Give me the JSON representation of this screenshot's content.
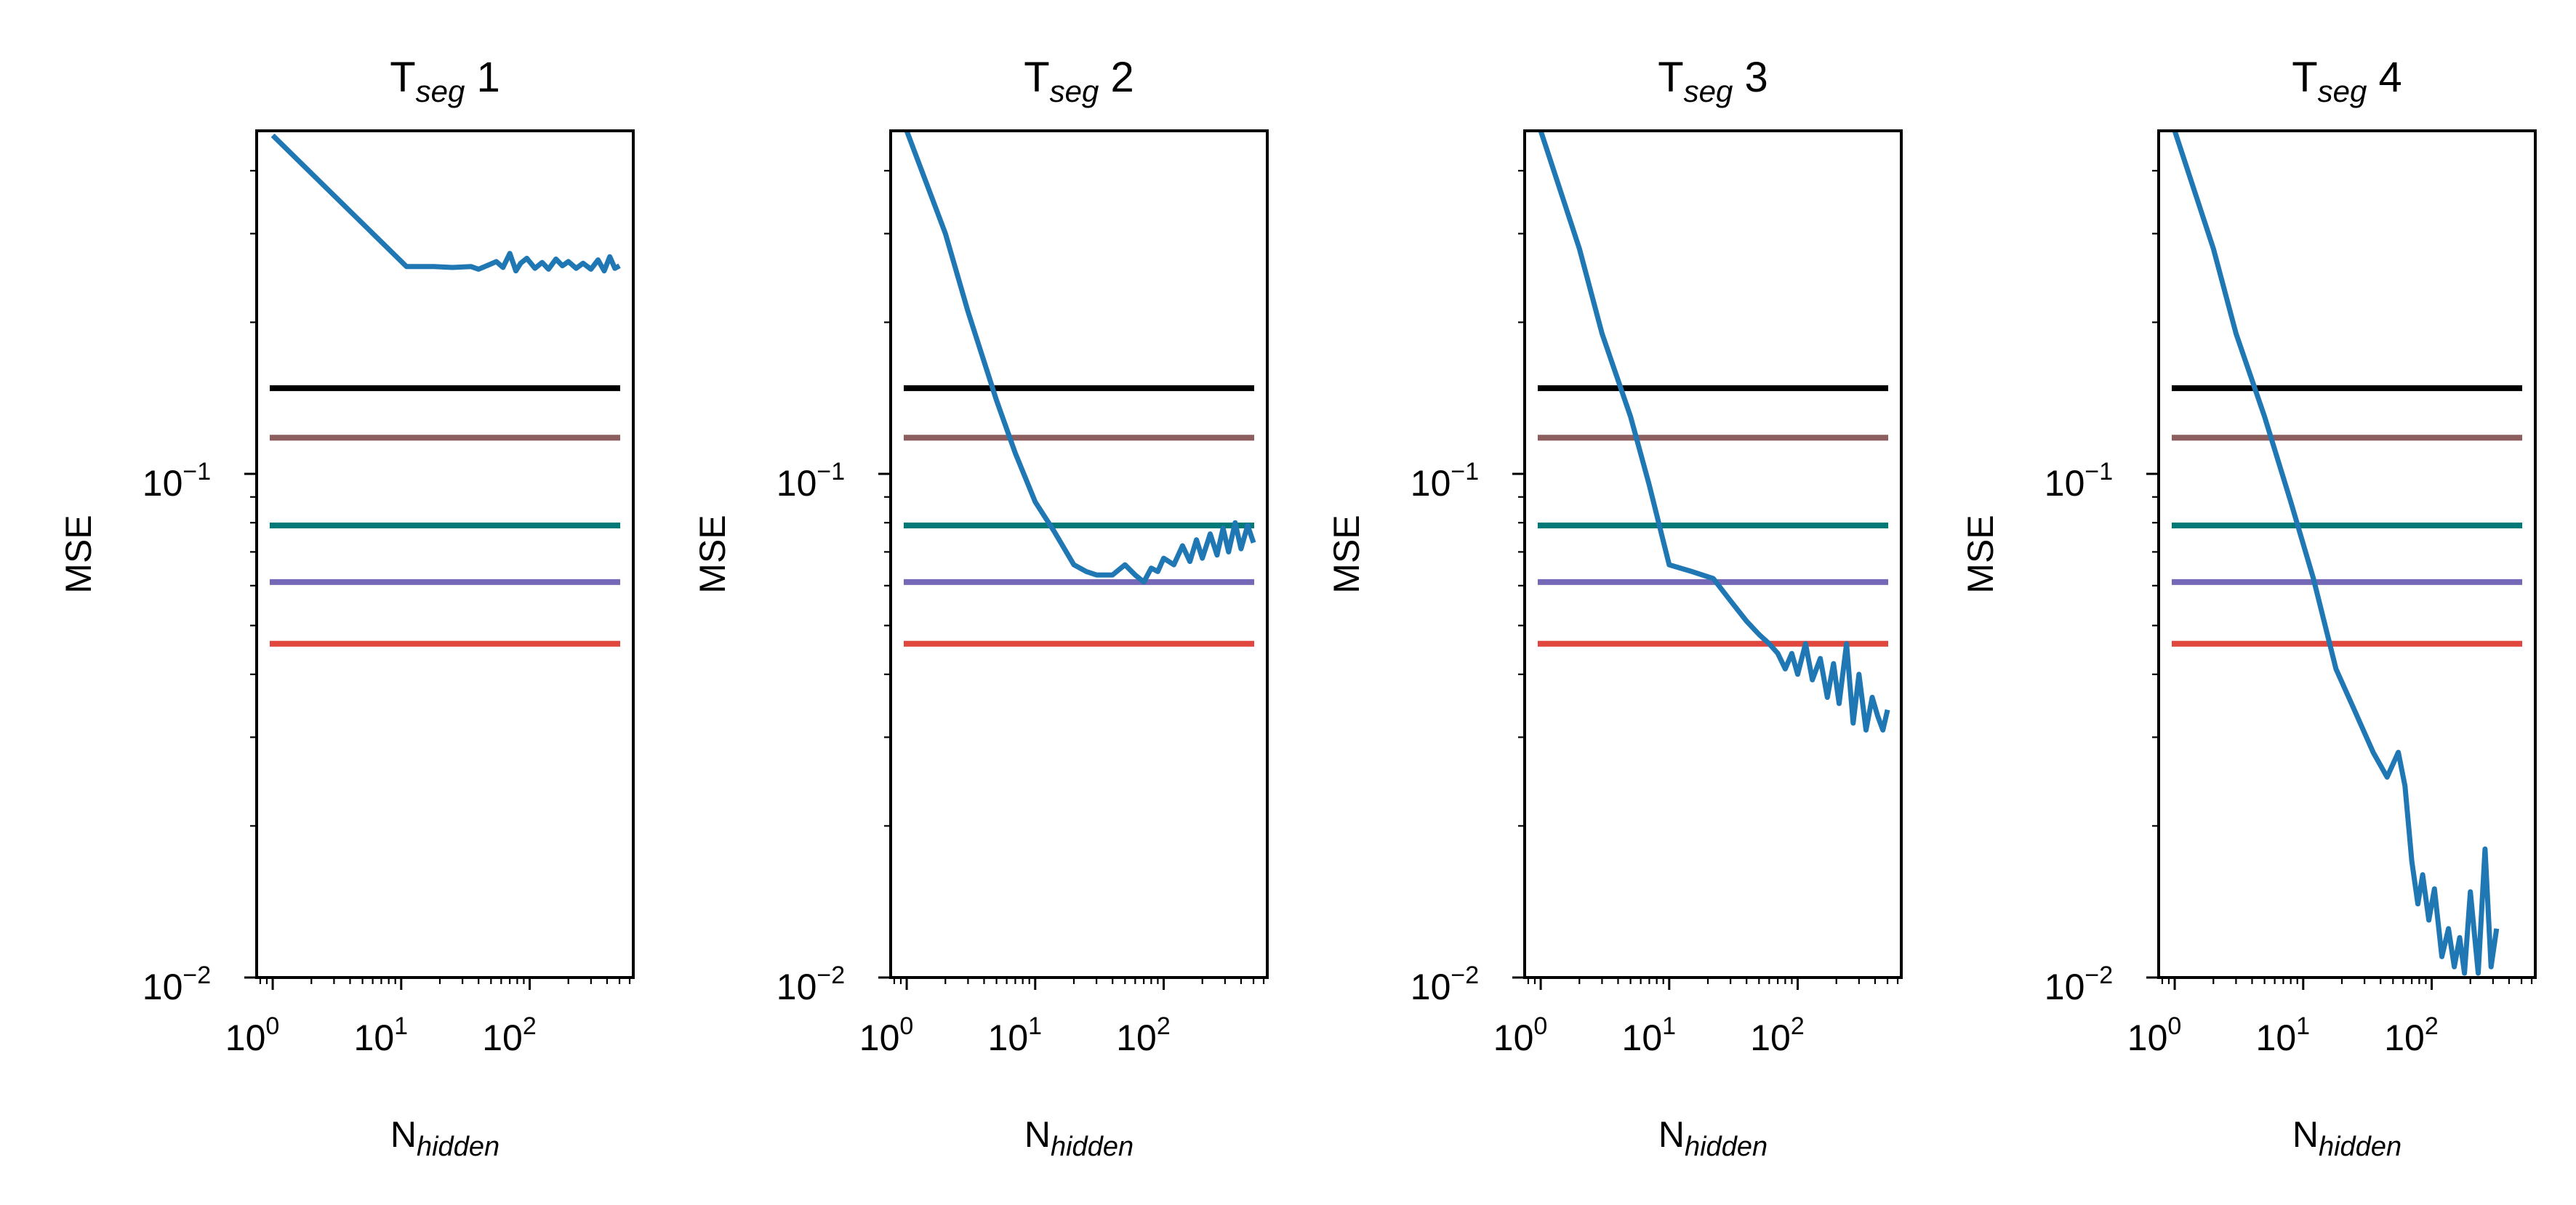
{
  "chart_data": [
    {
      "type": "line",
      "title": {
        "main": "T",
        "sub": "seg",
        "suffix": " 1"
      },
      "xlabel": {
        "main": "N",
        "sub": "hidden"
      },
      "ylabel": "MSE",
      "xscale": "log",
      "yscale": "log",
      "xlim": [
        0.75,
        640
      ],
      "ylim": [
        0.01,
        0.48
      ],
      "xticks": [
        {
          "base": "10",
          "exp": "0",
          "value": 1
        },
        {
          "base": "10",
          "exp": "1",
          "value": 10
        },
        {
          "base": "10",
          "exp": "2",
          "value": 100
        }
      ],
      "yticks": [
        {
          "base": "10",
          "exp": "−2",
          "value": 0.01
        },
        {
          "base": "10",
          "exp": "−1",
          "value": 0.1
        }
      ],
      "grid": false,
      "reference_lines": [
        {
          "y": 0.148,
          "color": "#000000"
        },
        {
          "y": 0.118,
          "color": "#8c5e5e"
        },
        {
          "y": 0.079,
          "color": "#007a78"
        },
        {
          "y": 0.061,
          "color": "#7468b7"
        },
        {
          "y": 0.046,
          "color": "#e0483f"
        }
      ],
      "series": [
        {
          "color": "#1f77b4",
          "x": [
            1,
            11,
            14,
            18,
            25,
            35,
            40,
            48,
            55,
            62,
            70,
            78,
            85,
            95,
            110,
            125,
            140,
            160,
            180,
            200,
            230,
            260,
            300,
            340,
            380,
            420,
            460,
            500
          ],
          "y": [
            0.47,
            0.258,
            0.258,
            0.258,
            0.257,
            0.258,
            0.255,
            0.26,
            0.264,
            0.257,
            0.274,
            0.253,
            0.262,
            0.268,
            0.256,
            0.263,
            0.255,
            0.267,
            0.259,
            0.264,
            0.256,
            0.262,
            0.255,
            0.266,
            0.253,
            0.27,
            0.256,
            0.259
          ]
        }
      ]
    },
    {
      "type": "line",
      "title": {
        "main": "T",
        "sub": "seg",
        "suffix": " 2"
      },
      "xlabel": {
        "main": "N",
        "sub": "hidden"
      },
      "ylabel": "MSE",
      "xscale": "log",
      "yscale": "log",
      "xlim": [
        0.75,
        640
      ],
      "ylim": [
        0.01,
        0.48
      ],
      "xticks": [
        {
          "base": "10",
          "exp": "0",
          "value": 1
        },
        {
          "base": "10",
          "exp": "1",
          "value": 10
        },
        {
          "base": "10",
          "exp": "2",
          "value": 100
        }
      ],
      "yticks": [
        {
          "base": "10",
          "exp": "−2",
          "value": 0.01
        },
        {
          "base": "10",
          "exp": "−1",
          "value": 0.1
        }
      ],
      "grid": false,
      "reference_lines": [
        {
          "y": 0.148,
          "color": "#000000"
        },
        {
          "y": 0.118,
          "color": "#8c5e5e"
        },
        {
          "y": 0.079,
          "color": "#007a78"
        },
        {
          "y": 0.061,
          "color": "#7468b7"
        },
        {
          "y": 0.046,
          "color": "#e0483f"
        }
      ],
      "series": [
        {
          "color": "#1f77b4",
          "x": [
            1,
            2,
            3,
            5,
            7,
            10,
            14,
            20,
            25,
            30,
            40,
            50,
            60,
            70,
            80,
            90,
            100,
            120,
            140,
            160,
            180,
            200,
            230,
            260,
            290,
            320,
            360,
            400,
            450,
            500
          ],
          "y": [
            0.48,
            0.3,
            0.21,
            0.14,
            0.11,
            0.088,
            0.077,
            0.066,
            0.064,
            0.063,
            0.063,
            0.066,
            0.063,
            0.061,
            0.065,
            0.064,
            0.068,
            0.066,
            0.072,
            0.067,
            0.074,
            0.068,
            0.076,
            0.069,
            0.078,
            0.07,
            0.08,
            0.071,
            0.079,
            0.073
          ]
        }
      ]
    },
    {
      "type": "line",
      "title": {
        "main": "T",
        "sub": "seg",
        "suffix": " 3"
      },
      "xlabel": {
        "main": "N",
        "sub": "hidden"
      },
      "ylabel": "MSE",
      "xscale": "log",
      "yscale": "log",
      "xlim": [
        0.75,
        640
      ],
      "ylim": [
        0.01,
        0.48
      ],
      "xticks": [
        {
          "base": "10",
          "exp": "0",
          "value": 1
        },
        {
          "base": "10",
          "exp": "1",
          "value": 10
        },
        {
          "base": "10",
          "exp": "2",
          "value": 100
        }
      ],
      "yticks": [
        {
          "base": "10",
          "exp": "−2",
          "value": 0.01
        },
        {
          "base": "10",
          "exp": "−1",
          "value": 0.1
        }
      ],
      "grid": false,
      "reference_lines": [
        {
          "y": 0.148,
          "color": "#000000"
        },
        {
          "y": 0.118,
          "color": "#8c5e5e"
        },
        {
          "y": 0.079,
          "color": "#007a78"
        },
        {
          "y": 0.061,
          "color": "#7468b7"
        },
        {
          "y": 0.046,
          "color": "#e0483f"
        }
      ],
      "series": [
        {
          "color": "#1f77b4",
          "x": [
            1,
            2,
            3,
            5,
            7,
            10,
            15,
            22,
            30,
            40,
            50,
            60,
            70,
            80,
            90,
            100,
            115,
            130,
            150,
            170,
            190,
            210,
            240,
            270,
            300,
            340,
            380,
            420,
            460,
            500
          ],
          "y": [
            0.48,
            0.28,
            0.19,
            0.13,
            0.095,
            0.066,
            0.064,
            0.062,
            0.056,
            0.051,
            0.048,
            0.046,
            0.044,
            0.041,
            0.044,
            0.04,
            0.046,
            0.039,
            0.043,
            0.036,
            0.042,
            0.035,
            0.046,
            0.032,
            0.04,
            0.031,
            0.036,
            0.033,
            0.031,
            0.034
          ]
        }
      ]
    },
    {
      "type": "line",
      "title": {
        "main": "T",
        "sub": "seg",
        "suffix": " 4"
      },
      "xlabel": {
        "main": "N",
        "sub": "hidden"
      },
      "ylabel": "MSE",
      "xscale": "log",
      "yscale": "log",
      "xlim": [
        0.75,
        640
      ],
      "ylim": [
        0.01,
        0.48
      ],
      "xticks": [
        {
          "base": "10",
          "exp": "0",
          "value": 1
        },
        {
          "base": "10",
          "exp": "1",
          "value": 10
        },
        {
          "base": "10",
          "exp": "2",
          "value": 100
        }
      ],
      "yticks": [
        {
          "base": "10",
          "exp": "−2",
          "value": 0.01
        },
        {
          "base": "10",
          "exp": "−1",
          "value": 0.1
        }
      ],
      "grid": false,
      "reference_lines": [
        {
          "y": 0.148,
          "color": "#000000"
        },
        {
          "y": 0.118,
          "color": "#8c5e5e"
        },
        {
          "y": 0.079,
          "color": "#007a78"
        },
        {
          "y": 0.061,
          "color": "#7468b7"
        },
        {
          "y": 0.046,
          "color": "#e0483f"
        }
      ],
      "series": [
        {
          "color": "#1f77b4",
          "x": [
            1,
            2,
            3,
            5,
            8,
            12,
            18,
            25,
            35,
            45,
            55,
            62,
            70,
            78,
            85,
            95,
            105,
            120,
            135,
            150,
            165,
            180,
            200,
            230,
            260,
            290,
            320
          ],
          "y": [
            0.48,
            0.28,
            0.19,
            0.13,
            0.088,
            0.062,
            0.041,
            0.034,
            0.028,
            0.025,
            0.028,
            0.024,
            0.017,
            0.014,
            0.016,
            0.013,
            0.015,
            0.011,
            0.0125,
            0.0105,
            0.012,
            0.0102,
            0.0148,
            0.0102,
            0.018,
            0.0105,
            0.0125
          ]
        }
      ]
    }
  ]
}
